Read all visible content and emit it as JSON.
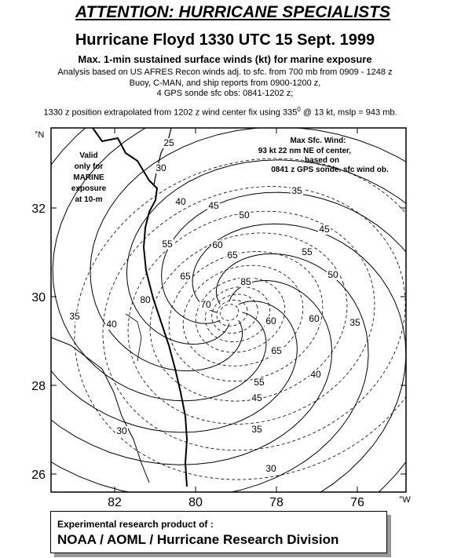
{
  "header": {
    "title": "ATTENTION: HURRICANE SPECIALISTS",
    "subtitle": "Hurricane Floyd 1330 UTC 15 Sept. 1999",
    "description": "Max. 1-min sustained surface winds (kt) for marine exposure",
    "lines": [
      "Analysis based on US AFRES Recon winds adj. to sfc. from 700 mb from 0909 - 1248 z",
      "Buoy, C-MAN, and ship reports from 0900-1200 z,",
      "4 GPS sonde sfc obs: 0841-1202 z;"
    ],
    "position_line": {
      "before": "1330 z position extrapolated from 1202 z wind center fix using 335",
      "superscript": "0",
      "after": "@ 13 kt, mslp = 943 mb."
    }
  },
  "map": {
    "note": [
      "Valid",
      "only for",
      "MARINE",
      "exposure",
      "at 10-m"
    ],
    "max_wind": [
      "Max Sfc. Wind:",
      "93 kt  22 nm NE of center,",
      "based on",
      "0841 z GPS sonde. sfc wind ob."
    ],
    "lat_unit": "°N",
    "lon_unit": "°W",
    "lat_ticks": [
      32,
      30,
      28,
      26
    ],
    "lon_ticks": [
      82,
      80,
      78,
      76
    ],
    "contour_labels": [
      25,
      30,
      35,
      40,
      45,
      50,
      55,
      60,
      65,
      65,
      45,
      55,
      85,
      50,
      70,
      80,
      40,
      35,
      60,
      65,
      60,
      40,
      55,
      45,
      35,
      30,
      30,
      35
    ]
  },
  "footer": {
    "line1": "Experimental research product of :",
    "line2": "NOAA / AOML / Hurricane Research Division"
  }
}
